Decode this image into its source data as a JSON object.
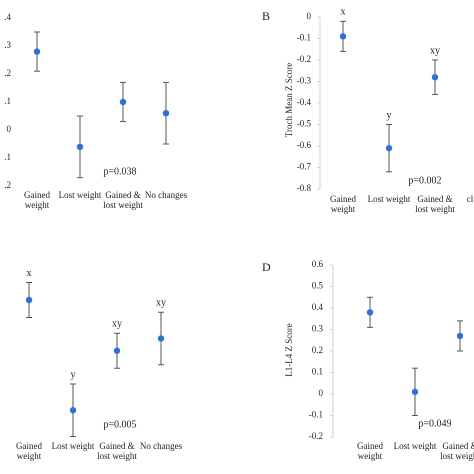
{
  "chart_data": [
    {
      "type": "errorbar",
      "categories": [
        "Gained weight",
        "Lost weight",
        "Gained & lost weight",
        "No changes"
      ],
      "values": [
        0.28,
        -0.06,
        0.1,
        0.06
      ],
      "errors": [
        0.07,
        0.11,
        0.07,
        0.11
      ],
      "annotation": "p=0.038",
      "color": "#2e6fd8",
      "ylim": [
        -0.2,
        0.4
      ],
      "yticks": [
        {
          "value": 0.4,
          "label": ".4"
        },
        {
          "value": 0.3,
          "label": ".3"
        },
        {
          "value": 0.2,
          "label": ".2"
        },
        {
          "value": 0.1,
          "label": ".1"
        },
        0,
        {
          "value": -0.1,
          "label": ".1"
        },
        {
          "value": -0.2,
          "label": ".2"
        }
      ]
    },
    {
      "type": "errorbar",
      "title": "B",
      "ylabel": "Troch Mean Z Score",
      "categories": [
        "Gained weight",
        "Lost weight",
        "Gained & lost weight",
        "cl"
      ],
      "values": [
        -0.09,
        -0.61,
        -0.28,
        null
      ],
      "errors": [
        0.07,
        0.11,
        0.08,
        null
      ],
      "point_labels": [
        "x",
        "y",
        "xy",
        null
      ],
      "annotation": "p=0.002",
      "color": "#2e6fd8",
      "ylim": [
        -0.8,
        0
      ],
      "yticks": [
        0,
        -0.1,
        -0.2,
        -0.3,
        -0.4,
        -0.5,
        -0.6,
        -0.7,
        -0.8
      ]
    },
    {
      "type": "errorbar",
      "categories": [
        "Gained weight",
        "Lost weight",
        "Gained & lost weight",
        "No changes"
      ],
      "values": [
        80,
        17,
        51,
        58
      ],
      "errors": [
        10,
        15,
        10,
        15
      ],
      "point_labels": [
        "x",
        "y",
        "xy",
        "xy"
      ],
      "annotation": "p=0.005",
      "color": "#2e6fd8",
      "ylim": [
        0,
        100
      ]
    },
    {
      "type": "errorbar",
      "title": "D",
      "ylabel": "L1-L4 Z Score",
      "categories": [
        "Gained weight",
        "Lost weight",
        "Gained & lost weight"
      ],
      "values": [
        0.38,
        0.01,
        0.27
      ],
      "errors": [
        0.07,
        0.11,
        0.07
      ],
      "annotation": "p=0.049",
      "color": "#2e6fd8",
      "ylim": [
        -0.2,
        0.6
      ],
      "yticks": [
        0.6,
        0.5,
        0.4,
        0.3,
        0.2,
        0.1,
        0,
        -0.1,
        -0.2
      ]
    }
  ]
}
